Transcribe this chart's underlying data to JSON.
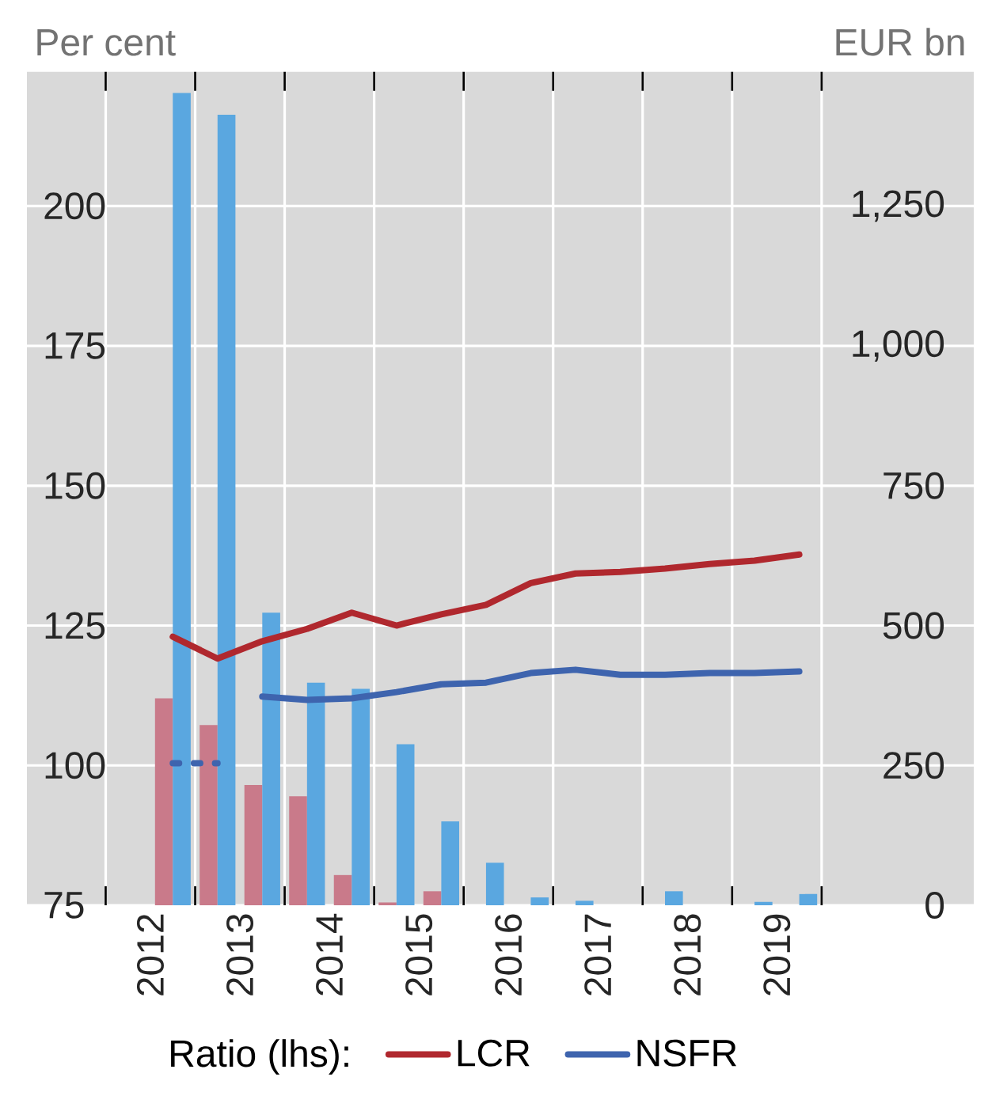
{
  "chart_data": {
    "type": "bar",
    "ylabel": "Per cent",
    "y2label": "EUR bn",
    "legend_title": "Ratio (lhs):",
    "x": [
      2012.75,
      2013.25,
      2013.75,
      2014.25,
      2014.75,
      2015.25,
      2015.75,
      2016.25,
      2016.75,
      2017.25,
      2017.75,
      2018.25,
      2018.75,
      2019.25,
      2019.75
    ],
    "xlim": [
      2011.12,
      2021.7
    ],
    "xticks": [
      {
        "value": 2012.5,
        "label": "2012"
      },
      {
        "value": 2013.5,
        "label": "2013"
      },
      {
        "value": 2014.5,
        "label": "2014"
      },
      {
        "value": 2015.5,
        "label": "2015"
      },
      {
        "value": 2016.5,
        "label": "2016"
      },
      {
        "value": 2017.5,
        "label": "2017"
      },
      {
        "value": 2018.5,
        "label": "2018"
      },
      {
        "value": 2019.5,
        "label": "2019"
      },
      {
        "value": 2012,
        "label": null
      },
      {
        "value": 2013,
        "label": null
      },
      {
        "value": 2014,
        "label": null
      },
      {
        "value": 2015,
        "label": null
      },
      {
        "value": 2016,
        "label": null
      },
      {
        "value": 2017,
        "label": null
      },
      {
        "value": 2018,
        "label": null
      },
      {
        "value": 2019,
        "label": null
      },
      {
        "value": 2020,
        "label": null
      }
    ],
    "ylim": [
      75,
      224
    ],
    "yticks": [
      75,
      100,
      125,
      150,
      175,
      200
    ],
    "y2lim": [
      0,
      1490
    ],
    "y2ticks": [
      0,
      250,
      500,
      750,
      {
        "value": 1000,
        "label": "1,000"
      },
      {
        "value": 1250,
        "label": "1,250"
      }
    ],
    "grid": true,
    "legend": "bottom",
    "series": [
      {
        "axis": "y2",
        "color": "#c97a8a",
        "values": [
          370,
          322,
          215,
          195,
          54,
          5,
          25,
          0,
          0,
          0,
          0,
          0,
          0,
          0,
          0
        ]
      },
      {
        "axis": "y2",
        "color": "#5aa7e0",
        "values": [
          1452,
          1413,
          523,
          398,
          387,
          288,
          150,
          76,
          14,
          8,
          0,
          25,
          0,
          6,
          20
        ]
      },
      {
        "type": "line",
        "name": "LCR",
        "color": "#b0282e",
        "values": [
          123.0,
          119.1,
          122.2,
          124.4,
          127.3,
          125.0,
          127.0,
          128.7,
          132.6,
          134.3,
          134.6,
          135.2,
          136.0,
          136.6,
          137.7
        ]
      },
      {
        "type": "line",
        "name": "NSFR",
        "color": "#3e64ae",
        "values": [
          null,
          null,
          112.3,
          111.7,
          112.0,
          113.1,
          114.5,
          114.8,
          116.5,
          117.1,
          116.2,
          116.2,
          116.5,
          116.5,
          116.8
        ]
      },
      {
        "type": "line",
        "color": "#3e64ae",
        "line_style": "dotted",
        "values": [
          100.4,
          100.4,
          null,
          null,
          null,
          null,
          null,
          null,
          null,
          null,
          null,
          null,
          null,
          null,
          null
        ]
      }
    ]
  }
}
